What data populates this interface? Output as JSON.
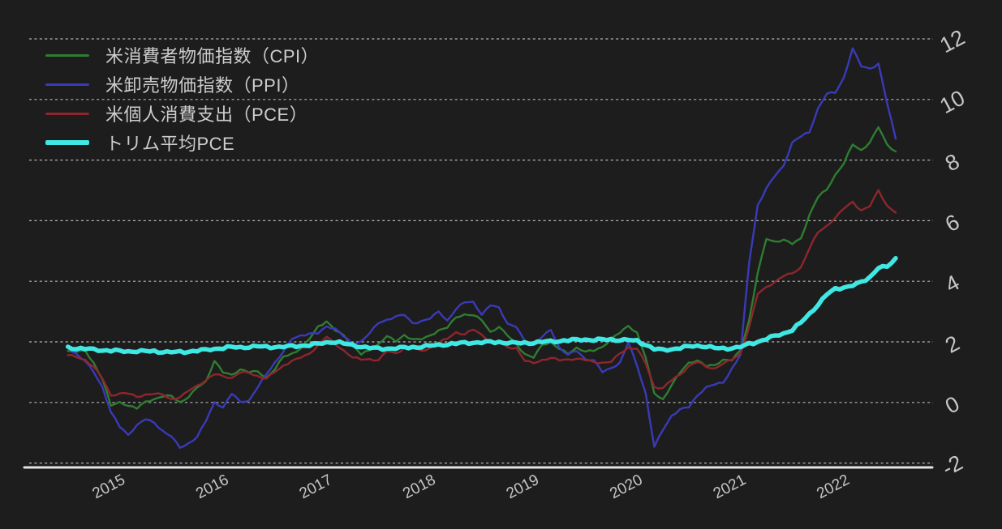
{
  "chart_data": {
    "type": "line",
    "title": "",
    "xlabel": "",
    "ylabel": "",
    "start_month": "2014-08",
    "end_month": "2022-08",
    "points_per_series": 97,
    "x_ticks": [
      "2015",
      "2016",
      "2017",
      "2018",
      "2019",
      "2020",
      "2021",
      "2022"
    ],
    "y_ticks": [
      "12",
      "10",
      "8",
      "6",
      "4",
      "2",
      "0",
      "-2"
    ],
    "ylim": [
      -2,
      12
    ],
    "grid": "horizontal-dashed",
    "legend_position": "top-left",
    "background_color": "#1d1d1d",
    "gridline_color": "#b5b5b5",
    "axis_color": "#e3e3e3",
    "tick_label_color": "#c6c6c6",
    "series": [
      {
        "name": "米消費者物価指数（CPI）",
        "color": "#2f7d31",
        "width": 2.4,
        "wobble": 0.9,
        "values": [
          1.7,
          1.7,
          1.7,
          1.3,
          0.8,
          -0.1,
          0.0,
          -0.1,
          -0.2,
          0.0,
          0.1,
          0.2,
          0.2,
          0.0,
          0.2,
          0.5,
          0.7,
          1.4,
          1.0,
          0.9,
          1.1,
          1.0,
          1.0,
          0.8,
          1.1,
          1.5,
          1.6,
          1.8,
          2.1,
          2.5,
          2.7,
          2.4,
          2.2,
          1.9,
          1.6,
          1.7,
          1.9,
          2.2,
          2.0,
          2.2,
          2.1,
          2.1,
          2.2,
          2.4,
          2.5,
          2.8,
          2.9,
          2.9,
          2.7,
          2.3,
          2.5,
          2.2,
          1.9,
          1.6,
          1.5,
          1.9,
          2.0,
          1.8,
          1.6,
          1.8,
          1.7,
          1.7,
          1.8,
          2.1,
          2.3,
          2.5,
          2.3,
          1.5,
          0.3,
          0.1,
          0.6,
          1.0,
          1.3,
          1.4,
          1.2,
          1.2,
          1.4,
          1.4,
          1.7,
          2.7,
          4.3,
          5.4,
          5.3,
          5.4,
          5.25,
          5.4,
          6.2,
          6.8,
          7.0,
          7.5,
          7.9,
          8.5,
          8.3,
          8.6,
          9.1,
          8.5,
          8.3
        ]
      },
      {
        "name": "米卸売物価指数（PPI）",
        "color": "#3a3ab8",
        "width": 2.4,
        "wobble": 0.9,
        "values": [
          1.8,
          1.6,
          1.4,
          1.0,
          0.5,
          -0.3,
          -0.8,
          -1.1,
          -0.75,
          -0.55,
          -0.7,
          -0.95,
          -1.1,
          -1.5,
          -1.35,
          -1.1,
          -0.6,
          0.0,
          -0.15,
          0.3,
          0.0,
          0.05,
          0.5,
          0.9,
          1.3,
          1.7,
          2.1,
          2.2,
          2.3,
          2.3,
          2.5,
          2.45,
          2.2,
          1.9,
          2.0,
          2.3,
          2.6,
          2.7,
          2.85,
          2.9,
          2.6,
          2.7,
          2.8,
          3.0,
          2.7,
          3.1,
          3.3,
          3.3,
          2.9,
          3.2,
          3.1,
          2.6,
          2.5,
          2.0,
          1.9,
          2.2,
          2.4,
          1.8,
          1.6,
          1.7,
          1.4,
          1.4,
          1.0,
          1.1,
          1.3,
          2.0,
          1.2,
          0.3,
          -1.43,
          -0.9,
          -0.45,
          -0.2,
          -0.15,
          0.2,
          0.5,
          0.6,
          0.62,
          1.1,
          1.6,
          4.6,
          6.5,
          7.1,
          7.5,
          7.8,
          8.6,
          8.8,
          8.9,
          9.7,
          10.2,
          10.2,
          10.7,
          11.7,
          11.1,
          11.0,
          11.2,
          9.9,
          8.7
        ]
      },
      {
        "name": "米個人消費支出（PCE）",
        "color": "#8e262c",
        "width": 2.4,
        "wobble": 0.9,
        "values": [
          1.6,
          1.5,
          1.4,
          1.2,
          0.8,
          0.2,
          0.3,
          0.3,
          0.15,
          0.25,
          0.3,
          0.25,
          0.1,
          0.2,
          0.4,
          0.55,
          0.75,
          0.95,
          0.85,
          0.8,
          1.0,
          0.95,
          0.85,
          0.8,
          1.0,
          1.2,
          1.4,
          1.5,
          1.6,
          1.9,
          2.2,
          1.9,
          1.7,
          1.5,
          1.4,
          1.4,
          1.4,
          1.7,
          1.6,
          1.8,
          1.8,
          1.7,
          1.8,
          2.0,
          2.1,
          2.3,
          2.25,
          2.4,
          2.2,
          2.0,
          2.0,
          1.8,
          1.8,
          1.4,
          1.3,
          1.4,
          1.5,
          1.4,
          1.4,
          1.45,
          1.4,
          1.3,
          1.3,
          1.35,
          1.6,
          1.8,
          1.8,
          1.3,
          0.5,
          0.5,
          0.75,
          0.9,
          1.2,
          1.35,
          1.15,
          1.1,
          1.3,
          1.4,
          1.6,
          2.5,
          3.6,
          3.8,
          4.0,
          4.2,
          4.25,
          4.45,
          5.1,
          5.6,
          5.8,
          6.1,
          6.4,
          6.6,
          6.35,
          6.5,
          7.0,
          6.5,
          6.3
        ]
      },
      {
        "name": "トリム平均PCE",
        "color": "#3fe8e2",
        "width": 5.5,
        "wobble": 1.2,
        "values": [
          1.83,
          1.8,
          1.78,
          1.75,
          1.72,
          1.7,
          1.68,
          1.67,
          1.68,
          1.68,
          1.69,
          1.68,
          1.67,
          1.68,
          1.7,
          1.72,
          1.74,
          1.77,
          1.79,
          1.81,
          1.8,
          1.82,
          1.84,
          1.83,
          1.84,
          1.85,
          1.87,
          1.89,
          1.91,
          1.94,
          1.98,
          2.0,
          1.93,
          1.87,
          1.83,
          1.79,
          1.77,
          1.78,
          1.8,
          1.82,
          1.84,
          1.86,
          1.88,
          1.9,
          1.92,
          1.93,
          1.95,
          1.96,
          1.97,
          1.98,
          1.99,
          1.98,
          1.97,
          1.98,
          1.99,
          2.01,
          2.02,
          2.03,
          2.04,
          2.05,
          2.06,
          2.05,
          2.06,
          2.07,
          2.07,
          2.07,
          2.04,
          1.93,
          1.78,
          1.74,
          1.76,
          1.8,
          1.83,
          1.85,
          1.84,
          1.78,
          1.77,
          1.8,
          1.84,
          1.94,
          2.02,
          2.12,
          2.2,
          2.28,
          2.4,
          2.62,
          2.9,
          3.22,
          3.55,
          3.73,
          3.8,
          3.87,
          3.97,
          4.15,
          4.48,
          4.48,
          4.75
        ]
      }
    ]
  }
}
